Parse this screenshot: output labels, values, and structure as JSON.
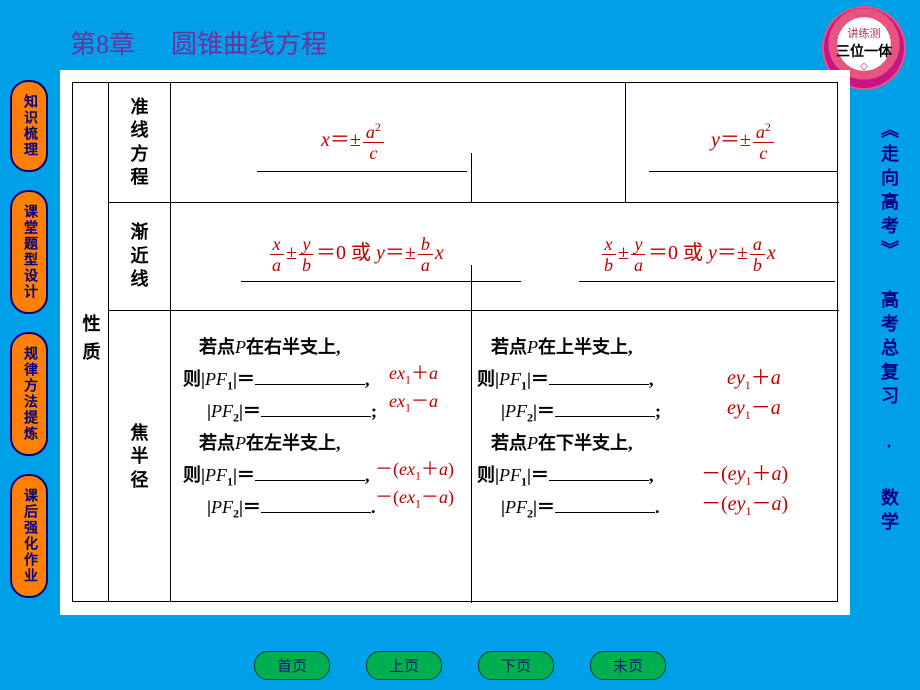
{
  "colors": {
    "page_bg": "#00a0e9",
    "panel_bg": "#ffffff",
    "nav_pill_bg": "#ff7f00",
    "nav_pill_border": "#000080",
    "nav_pill_text": "#000080",
    "title_text": "#7030a0",
    "equation_text": "#c00000",
    "body_text": "#000000",
    "btn_bg": "#00b050",
    "btn_border": "#004020",
    "btn_text": "#002060",
    "badge_outer": "#c71585",
    "badge_mid": "#e75480",
    "badge_inner": "#ffffff"
  },
  "badge": {
    "line1": "讲练测",
    "line2": "三位一体",
    "deco": "◇"
  },
  "chapter": {
    "num": "第8章",
    "title": "圆锥曲线方程"
  },
  "left_nav": [
    "知识梳理",
    "课堂题型设计",
    "规律方法提炼",
    "课后强化作业"
  ],
  "right_text": "《走向高考》 高考总复习 · 数学",
  "row_category_label": "性质",
  "rows": {
    "r1": {
      "label": "准线方程",
      "left_eq_html": "x<span class='rm'>＝±</span><span class='frac'><span class='num'>a<span class='sup'>2</span></span><span class='den'>c</span></span>",
      "right_eq_html": "y<span class='rm'>＝±</span><span class='frac'><span class='num'>a<span class='sup'>2</span></span><span class='den'>c</span></span>"
    },
    "r2": {
      "label": "渐近线",
      "left_eq_html": "<span class='frac'><span class='num'>x</span><span class='den'>a</span></span><span class='rm'>±</span><span class='frac'><span class='num'>y</span><span class='den'>b</span></span><span class='rm'>＝0 或 </span>y<span class='rm'>＝±</span><span class='frac'><span class='num'>b</span><span class='den'>a</span></span>x",
      "right_eq_html": "<span class='frac'><span class='num'>x</span><span class='den'>b</span></span><span class='rm'>±</span><span class='frac'><span class='num'>y</span><span class='den'>a</span></span><span class='rm'>＝0 或 </span>y<span class='rm'>＝±</span><span class='frac'><span class='num'>a</span><span class='den'>b</span></span>x"
    },
    "r3": {
      "label": "焦半径",
      "left_block": {
        "line1": "若点<i>P</i>在右半支上,",
        "pf1_prefix": "则|<i>PF</i><span class='sub'>1</span>|＝",
        "pf2_prefix": "|<i>PF</i><span class='sub'>2</span>|＝",
        "line4": "若点<i>P</i>在左半支上,",
        "ans1": "ex<span class='sub'>1</span><span class='rm'>＋</span>a",
        "ans2": "ex<span class='sub'>1</span><span class='rm'>－</span>a",
        "ans3": "<span class='rm'>－(</span>ex<span class='sub'>1</span><span class='rm'>＋</span>a<span class='rm'>)</span>",
        "ans4": "<span class='rm'>－(</span>ex<span class='sub'>1</span><span class='rm'>－</span>a<span class='rm'>)</span>"
      },
      "right_block": {
        "line1": "若点<i>P</i>在上半支上,",
        "pf1_prefix": "则|<i>PF</i><span class='sub'>1</span>|＝",
        "pf2_prefix": "|<i>PF</i><span class='sub'>2</span>|＝",
        "line4": "若点<i>P</i>在下半支上,",
        "ans1": "ey<span class='sub'>1</span><span class='rm'>＋</span>a",
        "ans2": "ey<span class='sub'>1</span><span class='rm'>－</span>a",
        "ans3": "<span class='rm'>－(</span>ey<span class='sub'>1</span><span class='rm'>＋</span>a<span class='rm'>)</span>",
        "ans4": "<span class='rm'>－(</span>ey<span class='sub'>1</span><span class='rm'>－</span>a<span class='rm'>)</span>"
      }
    }
  },
  "bottom_nav": [
    "首页",
    "上页",
    "下页",
    "末页"
  ]
}
